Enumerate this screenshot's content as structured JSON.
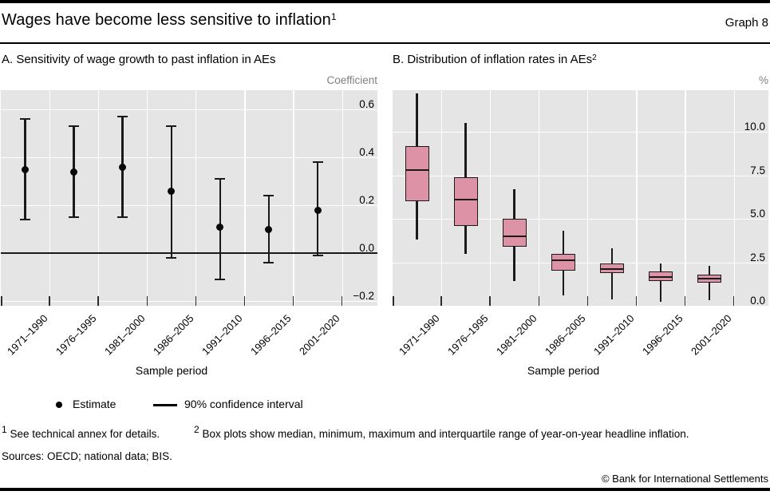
{
  "header": {
    "title": "Wages have become less sensitive to inflation",
    "title_superscript": "1",
    "graph_label": "Graph 8"
  },
  "panel_titles": {
    "a": "A. Sensitivity of wage growth to past inflation in AEs",
    "b": "B. Distribution of inflation rates in AEs",
    "b_superscript": "2"
  },
  "legend": {
    "estimate_label": "Estimate",
    "ci_label": "90% confidence interval"
  },
  "footnotes": [
    {
      "marker": "1",
      "text": "See technical annex for details."
    },
    {
      "marker": "2",
      "text": "Box plots show median, minimum, maximum and interquartile range of year-on-year headline inflation."
    }
  ],
  "sources": "Sources: OECD; national data; BIS.",
  "copyright": "© Bank for International Settlements",
  "colors": {
    "box_fill": "#dd92a6",
    "plot_background": "#e5e5e5",
    "gridline": "#ffffff",
    "line": "#1a1a1a",
    "muted_text": "#7f7f7f"
  },
  "chart_data": [
    {
      "panel": "A",
      "type": "scatter",
      "subtype": "estimate-with-error-bars",
      "title": "A. Sensitivity of wage growth to past inflation in AEs",
      "ylabel": "Coefficient",
      "xlabel": "Sample period",
      "categories": [
        "1971–1990",
        "1976–1995",
        "1981–2000",
        "1986–2005",
        "1991–2010",
        "1996–2015",
        "2001–2020"
      ],
      "series": [
        {
          "name": "Estimate",
          "values": [
            0.35,
            0.34,
            0.36,
            0.26,
            0.11,
            0.1,
            0.18
          ]
        },
        {
          "name": "90% confidence interval",
          "ci_low": [
            0.14,
            0.15,
            0.15,
            -0.02,
            -0.11,
            -0.04,
            -0.01
          ],
          "ci_high": [
            0.56,
            0.53,
            0.57,
            0.53,
            0.31,
            0.24,
            0.38
          ]
        }
      ],
      "yticks": [
        0.6,
        0.4,
        0.2,
        0.0,
        -0.2
      ],
      "ytick_labels": [
        "0.6",
        "0.4",
        "0.2",
        "0.0",
        "−0.2"
      ],
      "ylim": [
        -0.22,
        0.68
      ],
      "zero_line": 0.0,
      "grid": true,
      "legend_position": "below"
    },
    {
      "panel": "B",
      "type": "boxplot",
      "title": "B. Distribution of inflation rates in AEs",
      "ylabel": "%",
      "xlabel": "Sample period",
      "categories": [
        "1971–1990",
        "1976–1995",
        "1981–2000",
        "1986–2005",
        "1991–2010",
        "1996–2015",
        "2001–2020"
      ],
      "boxes": [
        {
          "min": 3.8,
          "q1": 6.0,
          "median": 7.8,
          "q3": 9.2,
          "max": 12.2
        },
        {
          "min": 3.0,
          "q1": 4.6,
          "median": 6.1,
          "q3": 7.4,
          "max": 10.5
        },
        {
          "min": 1.4,
          "q1": 3.4,
          "median": 4.0,
          "q3": 5.0,
          "max": 6.7
        },
        {
          "min": 0.6,
          "q1": 2.0,
          "median": 2.6,
          "q3": 3.0,
          "max": 4.3
        },
        {
          "min": 0.35,
          "q1": 1.9,
          "median": 2.1,
          "q3": 2.45,
          "max": 3.3
        },
        {
          "min": 0.25,
          "q1": 1.45,
          "median": 1.65,
          "q3": 2.0,
          "max": 2.45
        },
        {
          "min": 0.3,
          "q1": 1.35,
          "median": 1.55,
          "q3": 1.8,
          "max": 2.3
        }
      ],
      "yticks": [
        10.0,
        7.5,
        5.0,
        2.5,
        0.0
      ],
      "ytick_labels": [
        "10.0",
        "7.5",
        "5.0",
        "2.5",
        "0.0"
      ],
      "ylim": [
        0,
        12.4
      ],
      "grid": true
    }
  ]
}
